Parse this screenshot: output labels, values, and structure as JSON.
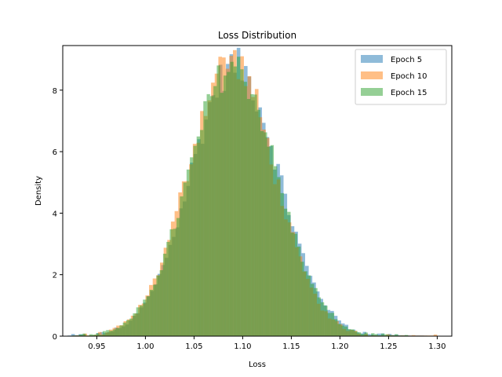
{
  "chart_data": {
    "type": "histogram",
    "title": "Loss Distribution",
    "xlabel": "Loss",
    "ylabel": "Density",
    "xlim": [
      0.915,
      1.315
    ],
    "ylim": [
      0,
      9.45
    ],
    "xticks": [
      0.95,
      1.0,
      1.05,
      1.1,
      1.15,
      1.2,
      1.25,
      1.3
    ],
    "xtick_labels": [
      "0.95",
      "1.00",
      "1.05",
      "1.10",
      "1.15",
      "1.20",
      "1.25",
      "1.30"
    ],
    "yticks": [
      0,
      2,
      4,
      6,
      8
    ],
    "ytick_labels": [
      "0",
      "2",
      "4",
      "6",
      "8"
    ],
    "grid": false,
    "legend_position": "top-right",
    "bins": 100,
    "series": [
      {
        "name": "Epoch 5",
        "color": "#1f77b4",
        "alpha": 0.5,
        "range": [
          0.92,
          1.29
        ],
        "mean": 1.092,
        "std": 0.045,
        "peak_density": 8.8
      },
      {
        "name": "Epoch 10",
        "color": "#ff7f0e",
        "alpha": 0.5,
        "range": [
          0.925,
          1.3
        ],
        "mean": 1.088,
        "std": 0.044,
        "peak_density": 9.0
      },
      {
        "name": "Epoch 15",
        "color": "#2ca02c",
        "alpha": 0.5,
        "range": [
          0.925,
          1.27
        ],
        "mean": 1.09,
        "std": 0.045,
        "peak_density": 8.8
      }
    ]
  }
}
